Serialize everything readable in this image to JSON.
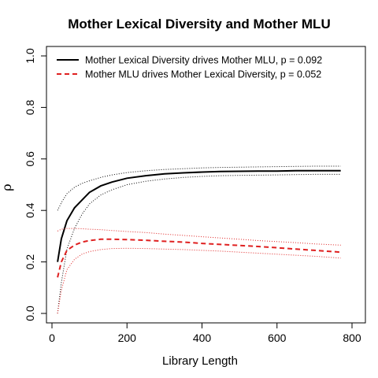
{
  "chart_data": {
    "type": "line",
    "title": "Mother Lexical Diversity and Mother MLU",
    "xlabel": "Library Length",
    "ylabel": "ρ",
    "xlim": [
      0,
      800
    ],
    "ylim": [
      0,
      1
    ],
    "xticks": [
      "0",
      "200",
      "400",
      "600",
      "800"
    ],
    "yticks": [
      "0.0",
      "0.2",
      "0.4",
      "0.6",
      "0.8",
      "1.0"
    ],
    "xtick_values": [
      0,
      200,
      400,
      600,
      800
    ],
    "ytick_values": [
      0,
      0.2,
      0.4,
      0.6,
      0.8,
      1.0
    ],
    "grid": false,
    "legend_position": "top-left",
    "series": [
      {
        "name": "Mother Lexical Diversity drives Mother MLU, p = 0.092",
        "color": "#000000",
        "dash": "solid",
        "x": [
          15,
          25,
          40,
          60,
          80,
          100,
          130,
          160,
          200,
          250,
          300,
          350,
          400,
          450,
          500,
          550,
          600,
          650,
          700,
          770
        ],
        "values": [
          0.2,
          0.29,
          0.36,
          0.41,
          0.44,
          0.47,
          0.495,
          0.51,
          0.525,
          0.535,
          0.542,
          0.546,
          0.549,
          0.551,
          0.552,
          0.553,
          0.553,
          0.554,
          0.554,
          0.554
        ],
        "upper": [
          0.4,
          0.43,
          0.465,
          0.49,
          0.505,
          0.515,
          0.528,
          0.538,
          0.547,
          0.554,
          0.559,
          0.562,
          0.565,
          0.567,
          0.568,
          0.569,
          0.57,
          0.571,
          0.572,
          0.572
        ],
        "lower": [
          0.0,
          0.12,
          0.25,
          0.33,
          0.385,
          0.425,
          0.46,
          0.48,
          0.5,
          0.513,
          0.522,
          0.528,
          0.532,
          0.535,
          0.536,
          0.537,
          0.538,
          0.539,
          0.54,
          0.54
        ]
      },
      {
        "name": "Mother MLU drives Mother Lexical Diversity, p = 0.052",
        "color": "#df2020",
        "dash": "dashed",
        "x": [
          15,
          25,
          40,
          60,
          80,
          100,
          130,
          160,
          200,
          250,
          300,
          350,
          400,
          450,
          500,
          550,
          600,
          650,
          700,
          770
        ],
        "values": [
          0.14,
          0.2,
          0.245,
          0.265,
          0.277,
          0.283,
          0.288,
          0.288,
          0.287,
          0.284,
          0.28,
          0.277,
          0.272,
          0.268,
          0.264,
          0.26,
          0.255,
          0.25,
          0.245,
          0.238
        ],
        "upper": [
          0.32,
          0.327,
          0.33,
          0.33,
          0.329,
          0.327,
          0.325,
          0.322,
          0.318,
          0.314,
          0.308,
          0.303,
          0.298,
          0.293,
          0.288,
          0.283,
          0.279,
          0.275,
          0.27,
          0.265
        ],
        "lower": [
          0.0,
          0.09,
          0.17,
          0.21,
          0.23,
          0.24,
          0.248,
          0.252,
          0.253,
          0.252,
          0.25,
          0.248,
          0.245,
          0.242,
          0.238,
          0.234,
          0.23,
          0.226,
          0.222,
          0.215
        ]
      }
    ]
  }
}
